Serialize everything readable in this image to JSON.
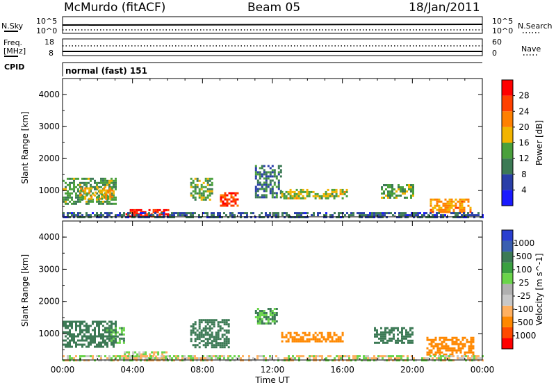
{
  "header": {
    "station": "McMurdo (fitACF)",
    "beam": "Beam 05",
    "date": "18/Jan/2011"
  },
  "panel_labels": {
    "nsky": "N.Sky",
    "nsearch": "N.Search",
    "freq_line1": "Freq.",
    "freq_line2": "[MHz]",
    "nave": "Nave",
    "cpid": "CPID",
    "cpid_value": "normal (fast) 151"
  },
  "scale_ticks": {
    "noise_left": [
      "10^5",
      "10^0"
    ],
    "noise_right": [
      "10^5",
      "10^0"
    ],
    "freq_left": [
      "18",
      "8"
    ],
    "nave_right": [
      "60",
      "0"
    ]
  },
  "colors": {
    "axis": "#000000",
    "power_scale": [
      "#1a1aff",
      "#2a3fa8",
      "#3c7a55",
      "#4aa03c",
      "#f2b400",
      "#ff8000",
      "#ff4000",
      "#ff0000"
    ],
    "velocity_scale": [
      "#ff0000",
      "#ff4a00",
      "#ff8800",
      "#ffb060",
      "#c8c8c8",
      "#b0b0b0",
      "#6ad44a",
      "#3aa040",
      "#3c7a55",
      "#3a5fb0",
      "#2a3fd0"
    ]
  },
  "chart_data": [
    {
      "type": "heatmap",
      "title": "",
      "xlabel": "Time UT",
      "ylabel": "Slant Range [km]",
      "colorbar_label": "Power [dB]",
      "colorbar_ticks": [
        "4",
        "8",
        "12",
        "16",
        "20",
        "24",
        "28"
      ],
      "x_ticks": [
        "00:00",
        "04:00",
        "08:00",
        "12:00",
        "16:00",
        "20:00",
        "00:00"
      ],
      "y_ticks": [
        "1000",
        "2000",
        "3000",
        "4000"
      ],
      "xlim_hours": [
        0,
        24
      ],
      "ylim_km": [
        180,
        4500
      ],
      "value_range": [
        0,
        30
      ],
      "regions": [
        {
          "t0": 0.0,
          "t1": 3.0,
          "r0": 600,
          "r1": 1400,
          "value": 12
        },
        {
          "t0": 1.0,
          "t1": 2.8,
          "r0": 750,
          "r1": 1100,
          "value": 17
        },
        {
          "t0": 3.6,
          "t1": 6.0,
          "r0": 200,
          "r1": 420,
          "value": 27
        },
        {
          "t0": 7.3,
          "t1": 8.5,
          "r0": 700,
          "r1": 1400,
          "value": 13
        },
        {
          "t0": 9.0,
          "t1": 10.0,
          "r0": 500,
          "r1": 950,
          "value": 25
        },
        {
          "t0": 11.0,
          "t1": 12.5,
          "r0": 800,
          "r1": 1800,
          "value": 9
        },
        {
          "t0": 12.5,
          "t1": 16.3,
          "r0": 750,
          "r1": 1050,
          "value": 15
        },
        {
          "t0": 18.2,
          "t1": 20.0,
          "r0": 750,
          "r1": 1200,
          "value": 13
        },
        {
          "t0": 21.0,
          "t1": 23.3,
          "r0": 350,
          "r1": 750,
          "value": 19
        },
        {
          "t0": 0.0,
          "t1": 24.0,
          "r0": 180,
          "r1": 330,
          "value": 7
        }
      ]
    },
    {
      "type": "heatmap",
      "title": "",
      "xlabel": "Time UT",
      "ylabel": "Slant Range [km]",
      "colorbar_label": "Velocity [m s^-1]",
      "colorbar_ticks": [
        "-1000",
        "-500",
        "-100",
        "-25",
        "25",
        "100",
        "500",
        "1000"
      ],
      "x_ticks": [
        "00:00",
        "04:00",
        "08:00",
        "12:00",
        "16:00",
        "20:00",
        "00:00"
      ],
      "y_ticks": [
        "1000",
        "2000",
        "3000",
        "4000"
      ],
      "xlim_hours": [
        0,
        24
      ],
      "ylim_km": [
        180,
        4500
      ],
      "value_range": [
        -1000,
        1000
      ],
      "regions": [
        {
          "t0": 0.0,
          "t1": 3.0,
          "r0": 600,
          "r1": 1400,
          "value": 300
        },
        {
          "t0": 2.5,
          "t1": 3.5,
          "r0": 700,
          "r1": 1200,
          "value": 120
        },
        {
          "t0": 3.5,
          "t1": 6.0,
          "r0": 200,
          "r1": 450,
          "value": 0
        },
        {
          "t0": 7.3,
          "t1": 9.5,
          "r0": 600,
          "r1": 1450,
          "value": 320
        },
        {
          "t0": 11.0,
          "t1": 12.3,
          "r0": 1300,
          "r1": 1800,
          "value": 120
        },
        {
          "t0": 12.5,
          "t1": 16.0,
          "r0": 750,
          "r1": 1050,
          "value": -200
        },
        {
          "t0": 17.8,
          "t1": 20.0,
          "r0": 700,
          "r1": 1200,
          "value": 200
        },
        {
          "t0": 20.8,
          "t1": 23.5,
          "r0": 350,
          "r1": 900,
          "value": -200
        },
        {
          "t0": 0.0,
          "t1": 24.0,
          "r0": 180,
          "r1": 330,
          "value": 0
        }
      ]
    }
  ]
}
